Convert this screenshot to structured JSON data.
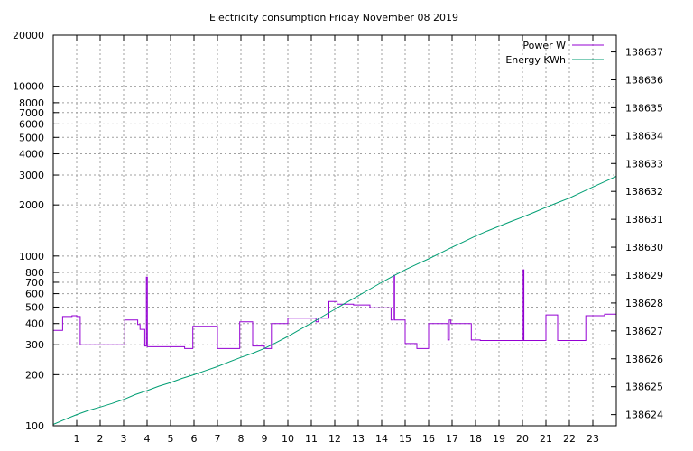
{
  "chart_data": {
    "type": "line",
    "title": "Electricity consumption Friday November 08 2019",
    "xlim": [
      0,
      24
    ],
    "x_ticks": [
      1,
      2,
      3,
      4,
      5,
      6,
      7,
      8,
      9,
      10,
      11,
      12,
      13,
      14,
      15,
      16,
      17,
      18,
      19,
      20,
      21,
      22,
      23
    ],
    "y_left": {
      "scale": "log",
      "range": [
        100,
        20000
      ],
      "ticks": [
        100,
        200,
        300,
        400,
        500,
        600,
        700,
        800,
        1000,
        2000,
        3000,
        4000,
        5000,
        6000,
        7000,
        8000,
        10000,
        20000
      ]
    },
    "y_right": {
      "scale": "linear",
      "range": [
        138623.6,
        138637.6
      ],
      "ticks": [
        138624,
        138625,
        138626,
        138627,
        138628,
        138629,
        138630,
        138631,
        138632,
        138633,
        138634,
        138635,
        138636,
        138637
      ]
    },
    "legend_position": "top-right",
    "grid": true,
    "series": [
      {
        "name": "Power W",
        "axis": "left",
        "color": "#9400d3",
        "step": true,
        "x": [
          0,
          0.4,
          0.8,
          1.0,
          1.15,
          1.55,
          2.0,
          2.5,
          3.0,
          3.05,
          3.5,
          3.6,
          3.7,
          3.9,
          3.97,
          4.01,
          4.05,
          5.0,
          5.6,
          5.95,
          6.7,
          7.0,
          7.6,
          7.95,
          8.3,
          8.5,
          9.0,
          9.3,
          9.75,
          10.0,
          10.5,
          11.2,
          11.3,
          11.75,
          12.1,
          12.5,
          12.8,
          13.5,
          14.0,
          14.2,
          14.4,
          14.5,
          14.55,
          14.9,
          15.0,
          15.5,
          16.0,
          16.5,
          16.8,
          16.82,
          16.88,
          16.95,
          17.7,
          17.82,
          18.2,
          19.0,
          19.5,
          20.0,
          20.03,
          20.06,
          20.5,
          21.0,
          21.1,
          21.5,
          22.0,
          22.1,
          22.7,
          23.5,
          23.85,
          24.0
        ],
        "values": [
          365,
          440,
          445,
          440,
          300,
          300,
          300,
          300,
          300,
          420,
          420,
          395,
          370,
          295,
          750,
          292,
          292,
          292,
          285,
          385,
          385,
          285,
          285,
          410,
          410,
          295,
          285,
          400,
          400,
          430,
          430,
          410,
          430,
          540,
          520,
          520,
          515,
          495,
          495,
          495,
          420,
          770,
          420,
          420,
          305,
          285,
          400,
          400,
          400,
          320,
          420,
          400,
          400,
          320,
          318,
          318,
          318,
          318,
          830,
          318,
          318,
          450,
          450,
          318,
          318,
          318,
          445,
          455,
          455,
          400
        ]
      },
      {
        "name": "Energy KWh",
        "axis": "right",
        "color": "#009e73",
        "x": [
          0,
          0.5,
          1.0,
          1.5,
          2.0,
          2.5,
          3.0,
          3.5,
          4.0,
          4.5,
          5.0,
          5.5,
          6.0,
          6.5,
          7.0,
          7.5,
          8.0,
          8.5,
          9.0,
          9.5,
          10.0,
          10.5,
          11.0,
          11.5,
          12.0,
          12.5,
          13.0,
          13.5,
          14.0,
          14.5,
          15.0,
          15.5,
          16.0,
          16.5,
          17.0,
          17.5,
          18.0,
          18.5,
          19.0,
          19.5,
          20.0,
          20.5,
          21.0,
          21.5,
          22.0,
          22.5,
          23.0,
          23.5,
          24.0
        ],
        "values": [
          138623.65,
          138623.83,
          138624.0,
          138624.15,
          138624.27,
          138624.4,
          138624.54,
          138624.72,
          138624.86,
          138625.02,
          138625.15,
          138625.3,
          138625.43,
          138625.58,
          138625.72,
          138625.89,
          138626.05,
          138626.2,
          138626.37,
          138626.58,
          138626.8,
          138627.04,
          138627.28,
          138627.53,
          138627.77,
          138628.02,
          138628.26,
          138628.5,
          138628.74,
          138628.97,
          138629.19,
          138629.39,
          138629.58,
          138629.79,
          138630.0,
          138630.2,
          138630.4,
          138630.58,
          138630.75,
          138630.92,
          138631.08,
          138631.25,
          138631.43,
          138631.6,
          138631.76,
          138631.96,
          138632.16,
          138632.35,
          138632.54
        ]
      }
    ]
  }
}
